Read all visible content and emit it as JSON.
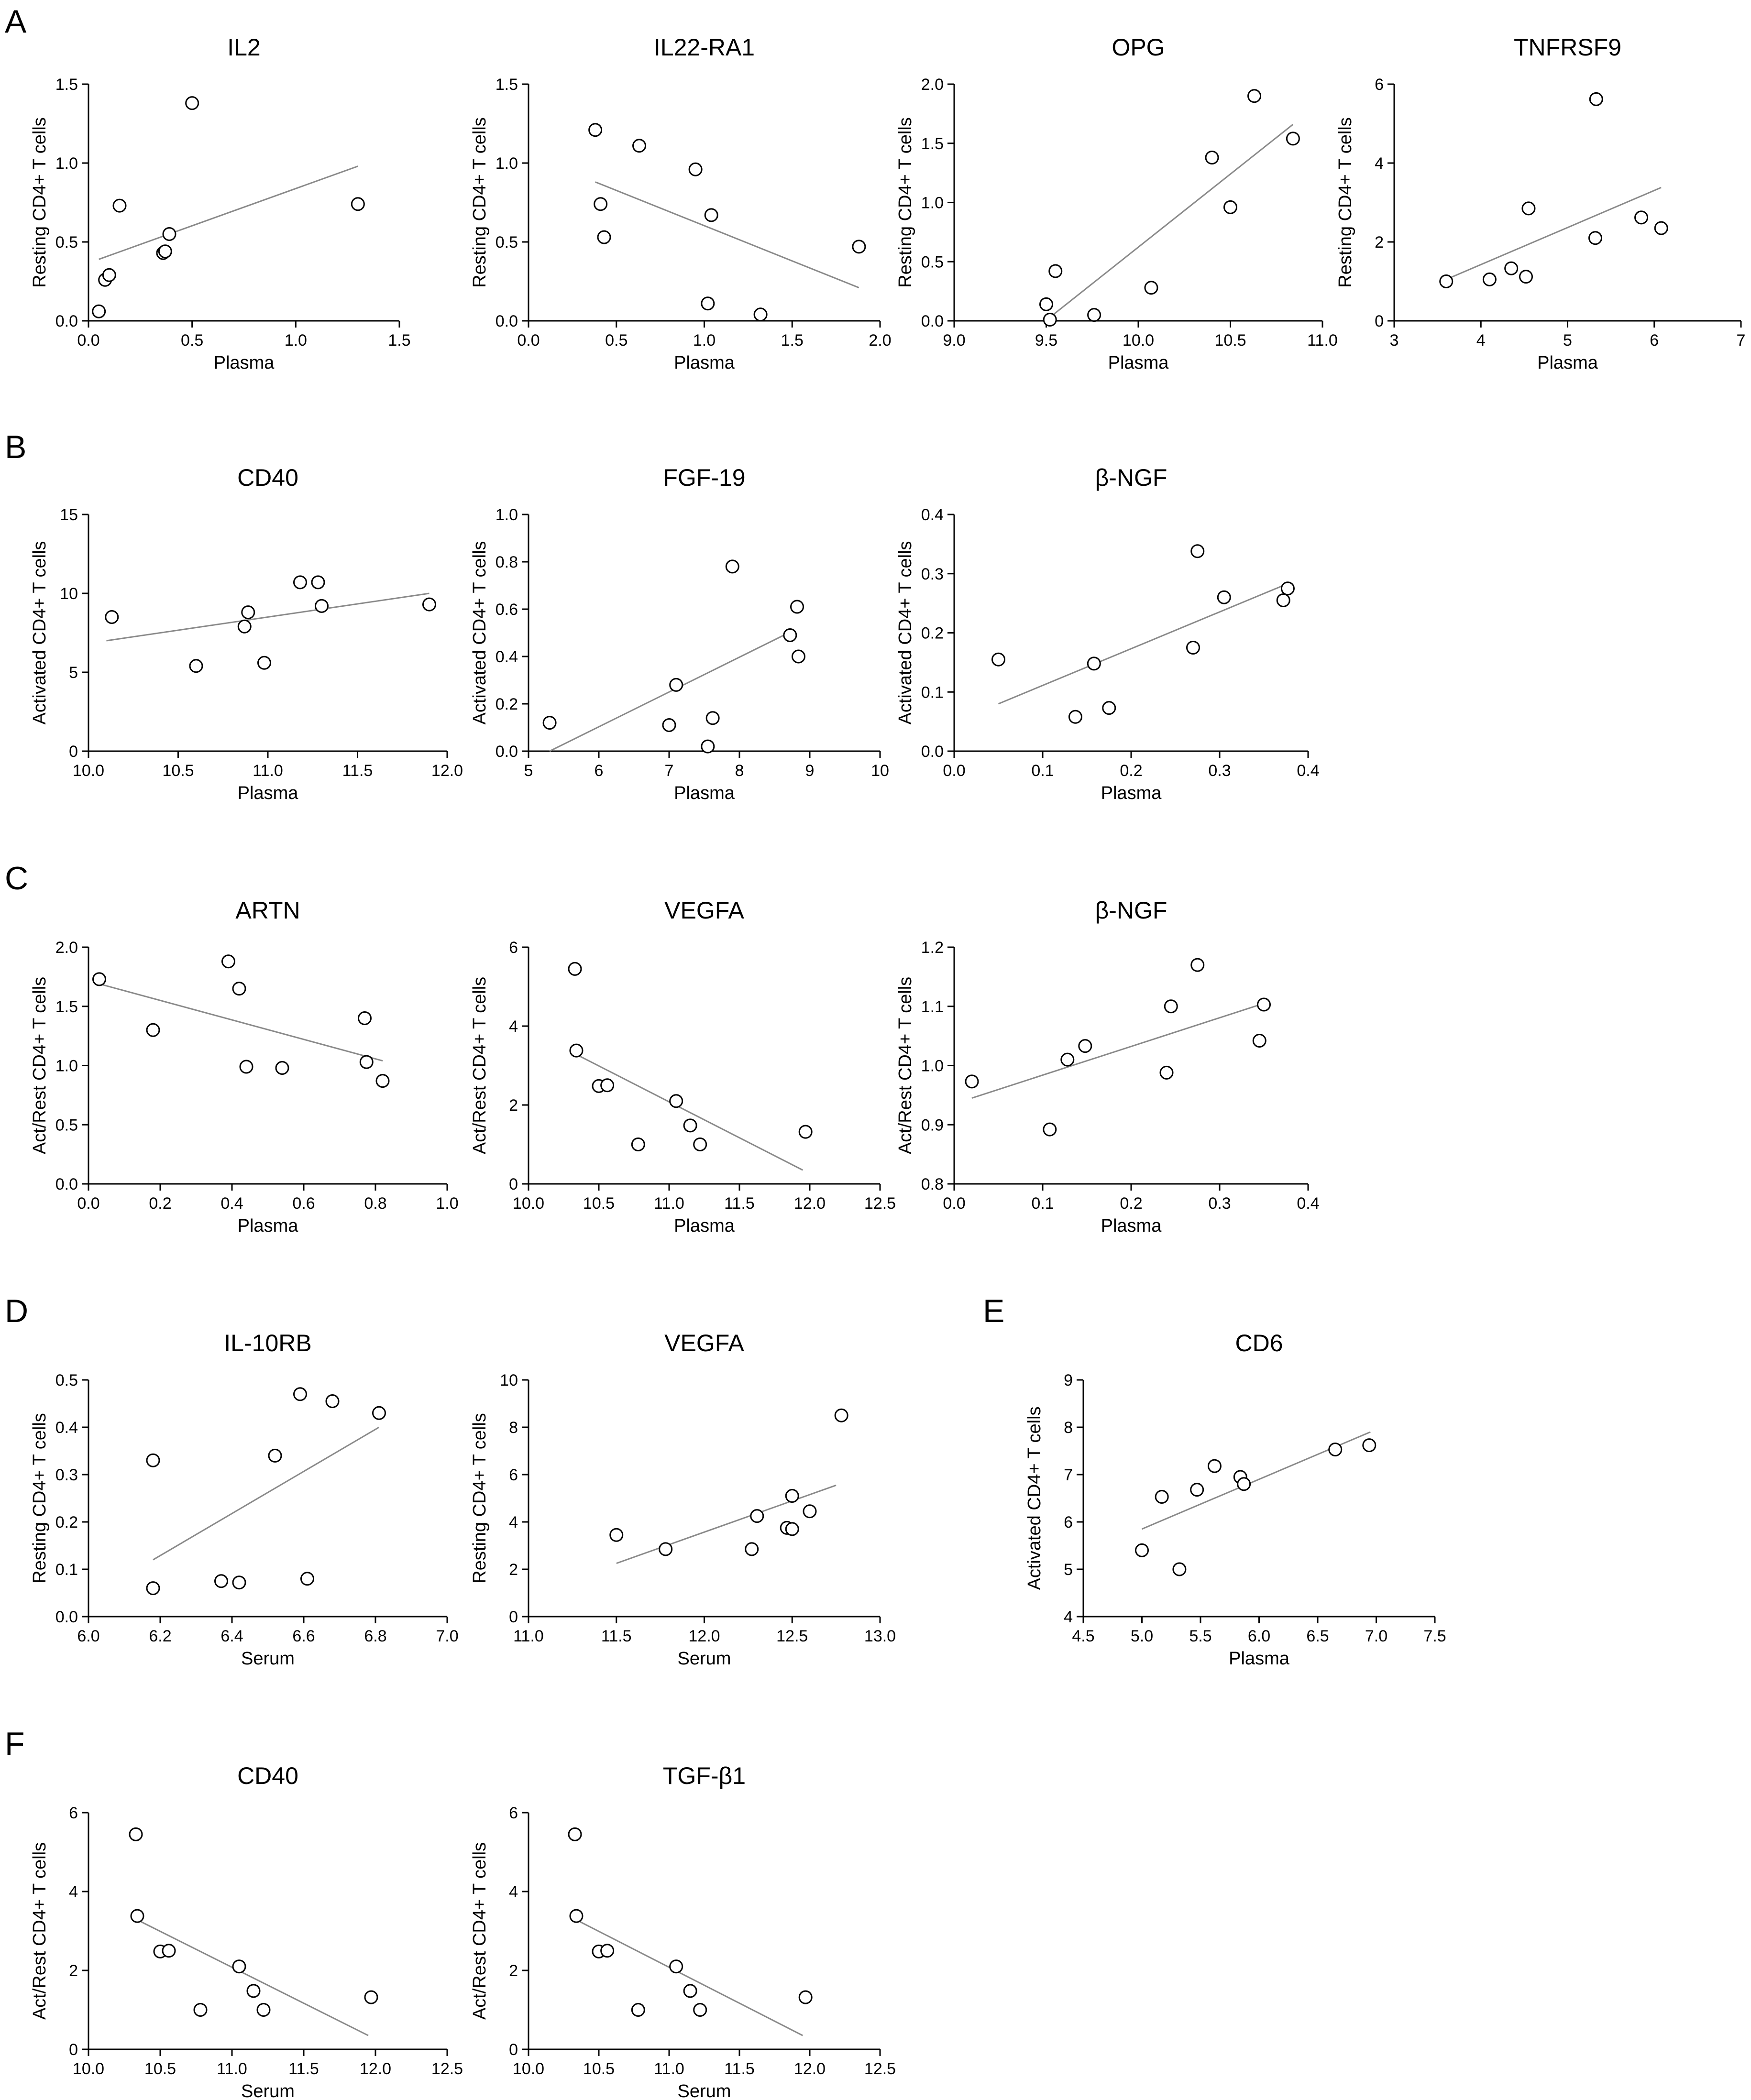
{
  "chart_data": [
    {
      "panel": "A",
      "type": "scatter",
      "title": "IL2",
      "xlabel": "Plasma",
      "ylabel": "Resting CD4+ T cells",
      "xlim": [
        0,
        1.5
      ],
      "ylim": [
        0,
        1.5
      ],
      "xticks": [
        "0.0",
        "0.5",
        "1.0",
        "1.5"
      ],
      "yticks": [
        "0.0",
        "0.5",
        "1.0",
        "1.5"
      ],
      "points": [
        [
          0.05,
          0.06
        ],
        [
          0.08,
          0.26
        ],
        [
          0.1,
          0.29
        ],
        [
          0.15,
          0.73
        ],
        [
          0.36,
          0.43
        ],
        [
          0.37,
          0.44
        ],
        [
          0.39,
          0.55
        ],
        [
          0.5,
          1.38
        ],
        [
          1.3,
          0.74
        ]
      ],
      "fit": [
        [
          0.05,
          0.39
        ],
        [
          1.3,
          0.98
        ]
      ]
    },
    {
      "panel": "",
      "type": "scatter",
      "title": "IL22-RA1",
      "xlabel": "Plasma",
      "ylabel": "Resting CD4+ T cells",
      "xlim": [
        0,
        2
      ],
      "ylim": [
        0,
        1.5
      ],
      "xticks": [
        "0.0",
        "0.5",
        "1.0",
        "1.5",
        "2.0"
      ],
      "yticks": [
        "0.0",
        "0.5",
        "1.0",
        "1.5"
      ],
      "points": [
        [
          0.38,
          1.21
        ],
        [
          0.41,
          0.74
        ],
        [
          0.43,
          0.53
        ],
        [
          0.63,
          1.11
        ],
        [
          0.95,
          0.96
        ],
        [
          1.02,
          0.11
        ],
        [
          1.04,
          0.67
        ],
        [
          1.32,
          0.04
        ],
        [
          1.88,
          0.47
        ]
      ],
      "fit": [
        [
          0.38,
          0.88
        ],
        [
          1.88,
          0.21
        ]
      ]
    },
    {
      "panel": "",
      "type": "scatter",
      "title": "OPG",
      "xlabel": "Plasma",
      "ylabel": "Resting CD4+ T cells",
      "xlim": [
        9,
        11
      ],
      "ylim": [
        0,
        2
      ],
      "xticks": [
        "9.0",
        "9.5",
        "10.0",
        "10.5",
        "11.0"
      ],
      "yticks": [
        "0.0",
        "0.5",
        "1.0",
        "1.5",
        "2.0"
      ],
      "points": [
        [
          9.5,
          0.14
        ],
        [
          9.52,
          0.01
        ],
        [
          9.55,
          0.42
        ],
        [
          9.76,
          0.05
        ],
        [
          10.07,
          0.28
        ],
        [
          10.4,
          1.38
        ],
        [
          10.5,
          0.96
        ],
        [
          10.63,
          1.9
        ],
        [
          10.84,
          1.54
        ]
      ],
      "fit": [
        [
          9.52,
          0.03
        ],
        [
          10.84,
          1.66
        ]
      ]
    },
    {
      "panel": "",
      "type": "scatter",
      "title": "TNFRSF9",
      "xlabel": "Plasma",
      "ylabel": "Resting CD4+ T cells",
      "xlim": [
        3,
        7
      ],
      "ylim": [
        0,
        6
      ],
      "xticks": [
        "3",
        "4",
        "5",
        "6",
        "7"
      ],
      "yticks": [
        "0",
        "2",
        "4",
        "6"
      ],
      "points": [
        [
          3.6,
          1.0
        ],
        [
          4.1,
          1.05
        ],
        [
          4.35,
          1.33
        ],
        [
          4.52,
          1.12
        ],
        [
          4.55,
          2.85
        ],
        [
          5.32,
          2.1
        ],
        [
          5.33,
          5.62
        ],
        [
          5.85,
          2.62
        ],
        [
          6.08,
          2.35
        ]
      ],
      "fit": [
        [
          3.6,
          1.05
        ],
        [
          6.08,
          3.38
        ]
      ]
    },
    {
      "panel": "B",
      "type": "scatter",
      "title": "CD40",
      "xlabel": "Plasma",
      "ylabel": "Activated CD4+ T cells",
      "xlim": [
        10,
        12
      ],
      "ylim": [
        0,
        15
      ],
      "xticks": [
        "10.0",
        "10.5",
        "11.0",
        "11.5",
        "12.0"
      ],
      "yticks": [
        "0",
        "5",
        "10",
        "15"
      ],
      "points": [
        [
          10.13,
          8.5
        ],
        [
          10.6,
          5.4
        ],
        [
          10.87,
          7.9
        ],
        [
          10.89,
          8.8
        ],
        [
          10.98,
          5.6
        ],
        [
          11.18,
          10.7
        ],
        [
          11.28,
          10.7
        ],
        [
          11.3,
          9.2
        ],
        [
          11.9,
          9.3
        ]
      ],
      "fit": [
        [
          10.1,
          7.0
        ],
        [
          11.9,
          10.0
        ]
      ]
    },
    {
      "panel": "",
      "type": "scatter",
      "title": "FGF-19",
      "xlabel": "Plasma",
      "ylabel": "Activated CD4+ T cells",
      "xlim": [
        5,
        10
      ],
      "ylim": [
        0,
        1
      ],
      "xticks": [
        "5",
        "6",
        "7",
        "8",
        "9",
        "10"
      ],
      "yticks": [
        "0.0",
        "0.2",
        "0.4",
        "0.6",
        "0.8",
        "1.0"
      ],
      "points": [
        [
          5.3,
          0.12
        ],
        [
          7.0,
          0.11
        ],
        [
          7.1,
          0.28
        ],
        [
          7.55,
          0.02
        ],
        [
          7.62,
          0.14
        ],
        [
          7.9,
          0.78
        ],
        [
          8.72,
          0.49
        ],
        [
          8.82,
          0.61
        ],
        [
          8.84,
          0.4
        ]
      ],
      "fit": [
        [
          5.3,
          0.0
        ],
        [
          8.7,
          0.5
        ]
      ]
    },
    {
      "panel": "",
      "type": "scatter",
      "title": "β-NGF",
      "xlabel": "Plasma",
      "ylabel": "Activated CD4+ T cells",
      "xlim": [
        0,
        0.4
      ],
      "ylim": [
        0,
        0.4
      ],
      "xticks": [
        "0.0",
        "0.1",
        "0.2",
        "0.3",
        "0.4"
      ],
      "yticks": [
        "0.0",
        "0.1",
        "0.2",
        "0.3",
        "0.4"
      ],
      "points": [
        [
          0.05,
          0.155
        ],
        [
          0.137,
          0.058
        ],
        [
          0.158,
          0.148
        ],
        [
          0.175,
          0.073
        ],
        [
          0.27,
          0.175
        ],
        [
          0.275,
          0.338
        ],
        [
          0.305,
          0.26
        ],
        [
          0.372,
          0.255
        ],
        [
          0.377,
          0.275
        ]
      ],
      "fit": [
        [
          0.05,
          0.08
        ],
        [
          0.38,
          0.285
        ]
      ]
    },
    {
      "panel": "C",
      "type": "scatter",
      "title": "ARTN",
      "xlabel": "Plasma",
      "ylabel": "Act/Rest CD4+ T cells",
      "xlim": [
        0,
        1
      ],
      "ylim": [
        0,
        2
      ],
      "xticks": [
        "0.0",
        "0.2",
        "0.4",
        "0.6",
        "0.8",
        "1.0"
      ],
      "yticks": [
        "0.0",
        "0.5",
        "1.0",
        "1.5",
        "2.0"
      ],
      "points": [
        [
          0.03,
          1.73
        ],
        [
          0.18,
          1.3
        ],
        [
          0.39,
          1.88
        ],
        [
          0.42,
          1.65
        ],
        [
          0.44,
          0.99
        ],
        [
          0.54,
          0.98
        ],
        [
          0.77,
          1.4
        ],
        [
          0.775,
          1.03
        ],
        [
          0.82,
          0.87
        ]
      ],
      "fit": [
        [
          0.03,
          1.69
        ],
        [
          0.82,
          1.04
        ]
      ]
    },
    {
      "panel": "",
      "type": "scatter",
      "title": "VEGFA",
      "xlabel": "Plasma",
      "ylabel": "Act/Rest CD4+ T cells",
      "xlim": [
        10,
        12.5
      ],
      "ylim": [
        0,
        6
      ],
      "xticks": [
        "10.0",
        "10.5",
        "11.0",
        "11.5",
        "12.0",
        "12.5"
      ],
      "yticks": [
        "0",
        "2",
        "4",
        "6"
      ],
      "points": [
        [
          10.33,
          5.45
        ],
        [
          10.34,
          3.38
        ],
        [
          10.5,
          2.48
        ],
        [
          10.56,
          2.5
        ],
        [
          10.78,
          1.0
        ],
        [
          11.05,
          2.1
        ],
        [
          11.15,
          1.48
        ],
        [
          11.22,
          1.0
        ],
        [
          11.97,
          1.32
        ]
      ],
      "fit": [
        [
          10.33,
          3.3
        ],
        [
          11.95,
          0.35
        ]
      ]
    },
    {
      "panel": "",
      "type": "scatter",
      "title": "β-NGF",
      "xlabel": "Plasma",
      "ylabel": "Act/Rest CD4+ T cells",
      "xlim": [
        0,
        0.4
      ],
      "ylim": [
        0.8,
        1.2
      ],
      "xticks": [
        "0.0",
        "0.1",
        "0.2",
        "0.3",
        "0.4"
      ],
      "yticks": [
        "0.8",
        "0.9",
        "1.0",
        "1.1",
        "1.2"
      ],
      "points": [
        [
          0.02,
          0.973
        ],
        [
          0.108,
          0.892
        ],
        [
          0.128,
          1.01
        ],
        [
          0.148,
          1.033
        ],
        [
          0.24,
          0.988
        ],
        [
          0.245,
          1.1
        ],
        [
          0.275,
          1.17
        ],
        [
          0.345,
          1.042
        ],
        [
          0.35,
          1.103
        ]
      ],
      "fit": [
        [
          0.02,
          0.945
        ],
        [
          0.35,
          1.105
        ]
      ]
    },
    {
      "panel": "D",
      "type": "scatter",
      "title": "IL-10RB",
      "xlabel": "Serum",
      "ylabel": "Resting CD4+ T cells",
      "xlim": [
        6,
        7
      ],
      "ylim": [
        0,
        0.5
      ],
      "xticks": [
        "6.0",
        "6.2",
        "6.4",
        "6.6",
        "6.8",
        "7.0"
      ],
      "yticks": [
        "0.0",
        "0.1",
        "0.2",
        "0.3",
        "0.4",
        "0.5"
      ],
      "points": [
        [
          6.18,
          0.06
        ],
        [
          6.18,
          0.33
        ],
        [
          6.37,
          0.075
        ],
        [
          6.42,
          0.072
        ],
        [
          6.52,
          0.34
        ],
        [
          6.59,
          0.47
        ],
        [
          6.61,
          0.08
        ],
        [
          6.68,
          0.455
        ],
        [
          6.81,
          0.43
        ]
      ],
      "fit": [
        [
          6.18,
          0.12
        ],
        [
          6.81,
          0.4
        ]
      ]
    },
    {
      "panel": "",
      "type": "scatter",
      "title": "VEGFA",
      "xlabel": "Serum",
      "ylabel": "Resting CD4+ T cells",
      "xlim": [
        11,
        13
      ],
      "ylim": [
        0,
        10
      ],
      "xticks": [
        "11.0",
        "11.5",
        "12.0",
        "12.5",
        "13.0"
      ],
      "yticks": [
        "0",
        "2",
        "4",
        "6",
        "8",
        "10"
      ],
      "points": [
        [
          11.5,
          3.45
        ],
        [
          11.78,
          2.85
        ],
        [
          12.27,
          2.85
        ],
        [
          12.3,
          4.25
        ],
        [
          12.47,
          3.75
        ],
        [
          12.5,
          5.1
        ],
        [
          12.5,
          3.7
        ],
        [
          12.6,
          4.45
        ],
        [
          12.78,
          8.5
        ]
      ],
      "fit": [
        [
          11.5,
          2.25
        ],
        [
          12.75,
          5.55
        ]
      ]
    },
    {
      "panel": "E",
      "type": "scatter",
      "title": "CD6",
      "xlabel": "Plasma",
      "ylabel": "Activated CD4+ T cells",
      "xlim": [
        4.5,
        7.5
      ],
      "ylim": [
        4,
        9
      ],
      "xticks": [
        "4.5",
        "5.0",
        "5.5",
        "6.0",
        "6.5",
        "7.0",
        "7.5"
      ],
      "yticks": [
        "4",
        "5",
        "6",
        "7",
        "8",
        "9"
      ],
      "points": [
        [
          5.0,
          5.4
        ],
        [
          5.17,
          6.53
        ],
        [
          5.32,
          5.0
        ],
        [
          5.47,
          6.68
        ],
        [
          5.62,
          7.18
        ],
        [
          5.84,
          6.95
        ],
        [
          5.87,
          6.8
        ],
        [
          6.65,
          7.53
        ],
        [
          6.94,
          7.62
        ]
      ],
      "fit": [
        [
          5.0,
          5.85
        ],
        [
          6.95,
          7.9
        ]
      ]
    },
    {
      "panel": "F",
      "type": "scatter",
      "title": "CD40",
      "xlabel": "Serum",
      "ylabel": "Act/Rest CD4+ T cells",
      "xlim": [
        10,
        12.5
      ],
      "ylim": [
        0,
        6
      ],
      "xticks": [
        "10.0",
        "10.5",
        "11.0",
        "11.5",
        "12.0",
        "12.5"
      ],
      "yticks": [
        "0",
        "2",
        "4",
        "6"
      ],
      "points": [
        [
          10.33,
          5.45
        ],
        [
          10.34,
          3.38
        ],
        [
          10.5,
          2.48
        ],
        [
          10.56,
          2.5
        ],
        [
          10.78,
          1.0
        ],
        [
          11.05,
          2.1
        ],
        [
          11.15,
          1.48
        ],
        [
          11.22,
          1.0
        ],
        [
          11.97,
          1.32
        ]
      ],
      "fit": [
        [
          10.33,
          3.3
        ],
        [
          11.95,
          0.35
        ]
      ]
    },
    {
      "panel": "",
      "type": "scatter",
      "title": "TGF-β1",
      "xlabel": "Serum",
      "ylabel": "Act/Rest CD4+ T cells",
      "xlim": [
        10,
        12.5
      ],
      "ylim": [
        0,
        6
      ],
      "xticks": [
        "10.0",
        "10.5",
        "11.0",
        "11.5",
        "12.0",
        "12.5"
      ],
      "yticks": [
        "0",
        "2",
        "4",
        "6"
      ],
      "points": [
        [
          10.33,
          5.45
        ],
        [
          10.34,
          3.38
        ],
        [
          10.5,
          2.48
        ],
        [
          10.56,
          2.5
        ],
        [
          10.78,
          1.0
        ],
        [
          11.05,
          2.1
        ],
        [
          11.15,
          1.48
        ],
        [
          11.22,
          1.0
        ],
        [
          11.97,
          1.32
        ]
      ],
      "fit": [
        [
          10.33,
          3.3
        ],
        [
          11.95,
          0.35
        ]
      ]
    }
  ]
}
